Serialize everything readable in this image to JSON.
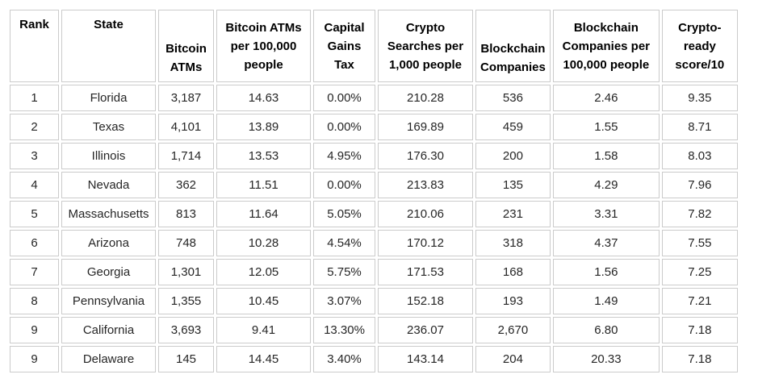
{
  "colors": {
    "background": "#ffffff",
    "cell_border": "#cbcbcb",
    "header_text": "#000000",
    "body_text": "#262626"
  },
  "chart_data": {
    "type": "table",
    "columns": [
      "Rank",
      "State",
      "Bitcoin ATMs",
      "Bitcoin ATMs per 100,000 people",
      "Capital Gains Tax",
      "Crypto Searches per 1,000 people",
      "Blockchain Companies",
      "Blockchain Companies per 100,000 people",
      "Crypto-ready score/10"
    ],
    "rows": [
      [
        "1",
        "Florida",
        "3,187",
        "14.63",
        "0.00%",
        "210.28",
        "536",
        "2.46",
        "9.35"
      ],
      [
        "2",
        "Texas",
        "4,101",
        "13.89",
        "0.00%",
        "169.89",
        "459",
        "1.55",
        "8.71"
      ],
      [
        "3",
        "Illinois",
        "1,714",
        "13.53",
        "4.95%",
        "176.30",
        "200",
        "1.58",
        "8.03"
      ],
      [
        "4",
        "Nevada",
        "362",
        "11.51",
        "0.00%",
        "213.83",
        "135",
        "4.29",
        "7.96"
      ],
      [
        "5",
        "Massachusetts",
        "813",
        "11.64",
        "5.05%",
        "210.06",
        "231",
        "3.31",
        "7.82"
      ],
      [
        "6",
        "Arizona",
        "748",
        "10.28",
        "4.54%",
        "170.12",
        "318",
        "4.37",
        "7.55"
      ],
      [
        "7",
        "Georgia",
        "1,301",
        "12.05",
        "5.75%",
        "171.53",
        "168",
        "1.56",
        "7.25"
      ],
      [
        "8",
        "Pennsylvania",
        "1,355",
        "10.45",
        "3.07%",
        "152.18",
        "193",
        "1.49",
        "7.21"
      ],
      [
        "9",
        "California",
        "3,693",
        "9.41",
        "13.30%",
        "236.07",
        "2,670",
        "6.80",
        "7.18"
      ],
      [
        "9",
        "Delaware",
        "145",
        "14.45",
        "3.40%",
        "143.14",
        "204",
        "20.33",
        "7.18"
      ]
    ]
  }
}
